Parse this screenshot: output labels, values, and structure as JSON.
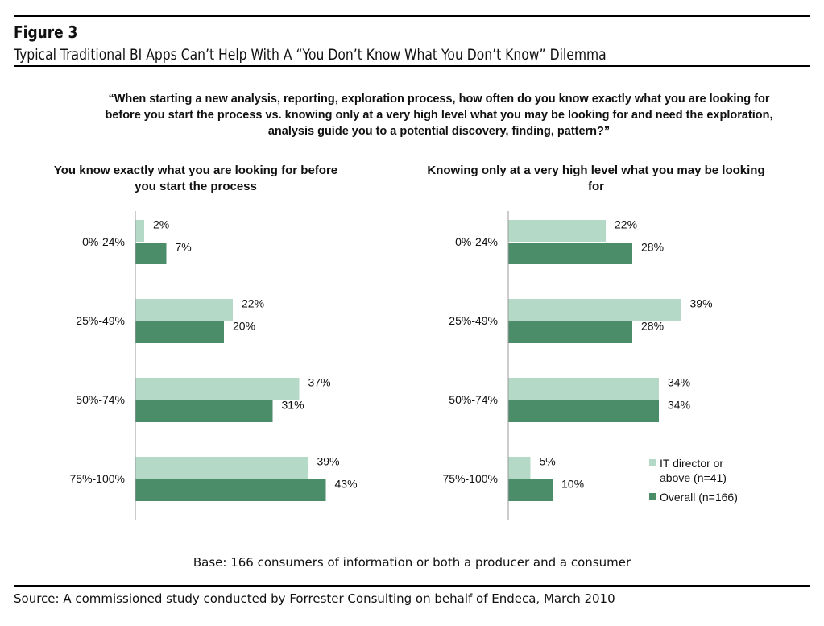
{
  "figure_label": "Figure 3",
  "figure_title": "Typical Traditional BI Apps Can’t Help With A “You Don’t Know What You Don’t Know” Dilemma",
  "question": "“When starting a new analysis, reporting, exploration process, how often do you know exactly what you are looking for before you start the process vs. knowing only at a very high level what you may be looking for and need the exploration, analysis guide you to a potential discovery, finding, pattern?”",
  "base_note": "Base: 166 consumers of information or both a producer and a consumer",
  "source": "Source: A commissioned study conducted by Forrester Consulting on behalf of Endeca, March 2010",
  "colors": {
    "it_director": "#b4dac7",
    "overall": "#4b8d69"
  },
  "legend": {
    "placement": "bottom-right of right chart",
    "items": [
      "IT director or above (n=41)",
      "Overall (n=166)"
    ]
  },
  "chart_data": [
    {
      "type": "bar",
      "orientation": "horizontal",
      "title": "You know exactly what you are looking for before you start the process",
      "categories": [
        "0%-24%",
        "25%-49%",
        "50%-74%",
        "75%-100%"
      ],
      "series": [
        {
          "name": "IT director or above (n=41)",
          "values": [
            2,
            22,
            37,
            39
          ]
        },
        {
          "name": "Overall (n=166)",
          "values": [
            7,
            20,
            31,
            43
          ]
        }
      ],
      "grid": false
    },
    {
      "type": "bar",
      "orientation": "horizontal",
      "title": "Knowing only at a very high level what you may be looking for",
      "categories": [
        "0%-24%",
        "25%-49%",
        "50%-74%",
        "75%-100%"
      ],
      "series": [
        {
          "name": "IT director or above (n=41)",
          "values": [
            22,
            39,
            34,
            5
          ]
        },
        {
          "name": "Overall (n=166)",
          "values": [
            28,
            28,
            34,
            10
          ]
        }
      ],
      "grid": false
    }
  ]
}
